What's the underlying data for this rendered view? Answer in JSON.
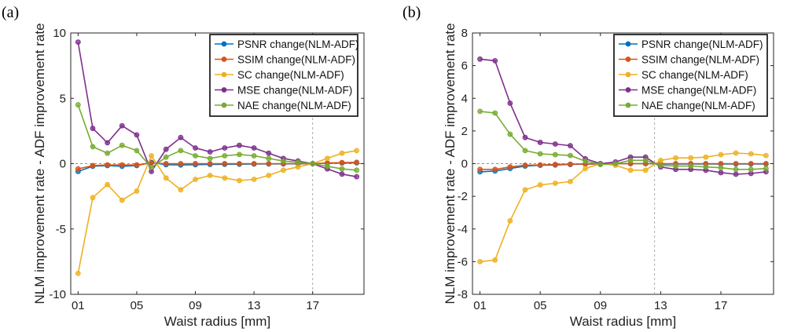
{
  "chart_data": [
    {
      "panel": "(a)",
      "type": "line",
      "xlabel": "Waist radius [mm]",
      "ylabel": "NLM improvement rate - ADF improvement rate",
      "x": [
        1,
        2,
        3,
        4,
        5,
        6,
        7,
        8,
        9,
        10,
        11,
        12,
        13,
        14,
        15,
        16,
        17,
        18,
        19,
        20
      ],
      "xticks": [
        1,
        5,
        9,
        13,
        17
      ],
      "xtick_labels": [
        "01",
        "05",
        "09",
        "13",
        "17"
      ],
      "xlim": [
        0.5,
        20.5
      ],
      "yticks": [
        -10,
        -5,
        0,
        5,
        10
      ],
      "ylim": [
        -10,
        10
      ],
      "vline_x": 17,
      "series": [
        {
          "name": "PSNR change(NLM-ADF)",
          "color": "#0072BD",
          "values": [
            -0.6,
            -0.2,
            -0.15,
            -0.2,
            -0.15,
            0.1,
            -0.08,
            -0.1,
            -0.08,
            -0.06,
            -0.05,
            -0.04,
            -0.03,
            -0.02,
            -0.02,
            -0.01,
            0,
            0.03,
            0.05,
            0.06
          ]
        },
        {
          "name": "SSIM change(NLM-ADF)",
          "color": "#D95319",
          "values": [
            -0.4,
            -0.15,
            -0.1,
            -0.1,
            -0.1,
            0.05,
            0,
            0,
            0,
            0,
            0,
            0,
            0,
            0,
            0,
            0,
            0,
            0.05,
            0.08,
            0.1
          ]
        },
        {
          "name": "SC change(NLM-ADF)",
          "color": "#EDB120",
          "values": [
            -8.4,
            -2.6,
            -1.6,
            -2.8,
            -2.1,
            0.6,
            -1.1,
            -2.0,
            -1.2,
            -0.9,
            -1.1,
            -1.3,
            -1.2,
            -0.9,
            -0.5,
            -0.25,
            0,
            0.4,
            0.8,
            1.0
          ]
        },
        {
          "name": "MSE change(NLM-ADF)",
          "color": "#7E2F8E",
          "values": [
            9.3,
            2.7,
            1.6,
            2.9,
            2.2,
            -0.6,
            1.1,
            2.0,
            1.2,
            0.9,
            1.2,
            1.4,
            1.2,
            0.8,
            0.4,
            0.2,
            0,
            -0.4,
            -0.8,
            -1.0
          ]
        },
        {
          "name": "NAE change(NLM-ADF)",
          "color": "#77AC30",
          "values": [
            4.5,
            1.3,
            0.8,
            1.4,
            1.0,
            -0.3,
            0.5,
            1.0,
            0.6,
            0.4,
            0.6,
            0.7,
            0.6,
            0.4,
            0.2,
            0.1,
            0,
            -0.2,
            -0.4,
            -0.5
          ]
        }
      ]
    },
    {
      "panel": "(b)",
      "type": "line",
      "xlabel": "Waist radius [mm]",
      "ylabel": "NLM improvement rate - ADF improvement rate",
      "x": [
        1,
        2,
        3,
        4,
        5,
        6,
        7,
        8,
        9,
        10,
        11,
        12,
        13,
        14,
        15,
        16,
        17,
        18,
        19,
        20
      ],
      "xticks": [
        1,
        5,
        9,
        13,
        17
      ],
      "xtick_labels": [
        "01",
        "05",
        "09",
        "13",
        "17"
      ],
      "xlim": [
        0.5,
        20.5
      ],
      "yticks": [
        -8,
        -6,
        -4,
        -2,
        0,
        2,
        4,
        6,
        8
      ],
      "ylim": [
        -8,
        8
      ],
      "vline_x": 12.6,
      "series": [
        {
          "name": "PSNR change(NLM-ADF)",
          "color": "#0072BD",
          "values": [
            -0.5,
            -0.45,
            -0.3,
            -0.15,
            -0.1,
            -0.08,
            -0.05,
            -0.03,
            -0.02,
            0,
            0,
            0,
            -0.02,
            -0.02,
            -0.02,
            -0.02,
            -0.02,
            -0.02,
            -0.02,
            -0.02
          ]
        },
        {
          "name": "SSIM change(NLM-ADF)",
          "color": "#D95319",
          "values": [
            -0.35,
            -0.35,
            -0.2,
            -0.1,
            -0.08,
            -0.05,
            -0.03,
            -0.02,
            -0.01,
            0,
            0,
            0,
            0,
            0,
            0,
            0,
            0,
            0,
            0,
            0
          ]
        },
        {
          "name": "SC change(NLM-ADF)",
          "color": "#EDB120",
          "values": [
            -6.0,
            -5.9,
            -3.5,
            -1.6,
            -1.3,
            -1.2,
            -1.1,
            -0.3,
            0,
            -0.1,
            -0.4,
            -0.4,
            0.2,
            0.35,
            0.35,
            0.4,
            0.55,
            0.65,
            0.6,
            0.5
          ]
        },
        {
          "name": "MSE change(NLM-ADF)",
          "color": "#7E2F8E",
          "values": [
            6.4,
            6.3,
            3.7,
            1.6,
            1.3,
            1.2,
            1.1,
            0.3,
            0,
            0.1,
            0.4,
            0.4,
            -0.2,
            -0.35,
            -0.35,
            -0.4,
            -0.55,
            -0.65,
            -0.6,
            -0.5
          ]
        },
        {
          "name": "NAE change(NLM-ADF)",
          "color": "#77AC30",
          "values": [
            3.2,
            3.1,
            1.8,
            0.8,
            0.6,
            0.55,
            0.5,
            0.15,
            -0.05,
            0,
            0.2,
            0.2,
            -0.1,
            -0.15,
            -0.15,
            -0.2,
            -0.25,
            -0.35,
            -0.35,
            -0.3
          ]
        }
      ]
    }
  ]
}
